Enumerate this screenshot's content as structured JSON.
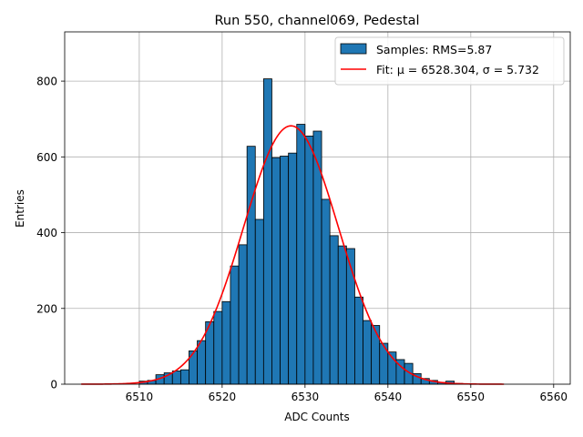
{
  "chart_data": {
    "type": "bar",
    "title": "Run 550, channel069, Pedestal",
    "xlabel": "ADC Counts",
    "ylabel": "Entries",
    "xlim": [
      6501,
      6562
    ],
    "ylim": [
      0,
      930
    ],
    "xticks": [
      6510,
      6520,
      6530,
      6540,
      6550,
      6560
    ],
    "yticks": [
      0,
      200,
      400,
      600,
      800
    ],
    "grid": true,
    "legend_position": "top-right",
    "bin_width": 1,
    "histogram": {
      "name": "Samples: RMS=5.87",
      "color": "#1f77b4",
      "bin_left_edges": [
        6510,
        6511,
        6512,
        6513,
        6514,
        6515,
        6516,
        6517,
        6518,
        6519,
        6520,
        6521,
        6522,
        6523,
        6524,
        6525,
        6526,
        6527,
        6528,
        6529,
        6530,
        6531,
        6532,
        6533,
        6534,
        6535,
        6536,
        6537,
        6538,
        6539,
        6540,
        6541,
        6542,
        6543,
        6544,
        6545,
        6546,
        6547,
        6548
      ],
      "counts": [
        8,
        10,
        25,
        30,
        35,
        38,
        88,
        115,
        165,
        192,
        218,
        312,
        368,
        628,
        435,
        806,
        598,
        602,
        610,
        686,
        655,
        668,
        488,
        392,
        365,
        358,
        230,
        168,
        155,
        108,
        85,
        65,
        55,
        28,
        15,
        10,
        5,
        8,
        2
      ]
    },
    "fit": {
      "name": "Fit: μ = 6528.304, σ = 5.732",
      "color": "#ff0000",
      "mu": 6528.304,
      "sigma": 5.732,
      "amplitude": 682,
      "x_range": [
        6503,
        6554
      ]
    }
  }
}
